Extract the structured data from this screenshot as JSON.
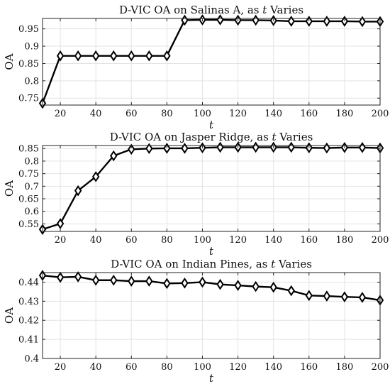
{
  "chart_data": [
    {
      "type": "line",
      "title_prefix": "D-VIC OA on Salinas A, as ",
      "title_var": "t",
      "title_suffix": " Varies",
      "xlabel": "t",
      "ylabel": "OA",
      "xlim": [
        10,
        200
      ],
      "ylim": [
        0.73,
        0.98
      ],
      "xticks": [
        20,
        40,
        60,
        80,
        100,
        120,
        140,
        160,
        180,
        200
      ],
      "yticks": [
        0.75,
        0.8,
        0.85,
        0.9,
        0.95
      ],
      "ytick_labels": [
        "0.75",
        "0.8",
        "0.85",
        "0.9",
        "0.95"
      ],
      "grid": true,
      "x": [
        10,
        20,
        30,
        40,
        50,
        60,
        70,
        80,
        90,
        100,
        110,
        120,
        130,
        140,
        150,
        160,
        170,
        180,
        190,
        200
      ],
      "y": [
        0.735,
        0.872,
        0.872,
        0.872,
        0.872,
        0.872,
        0.872,
        0.872,
        0.975,
        0.976,
        0.976,
        0.975,
        0.975,
        0.974,
        0.972,
        0.972,
        0.972,
        0.972,
        0.971,
        0.971
      ]
    },
    {
      "type": "line",
      "title_prefix": "D-VIC OA on Jasper Ridge, as ",
      "title_var": "t",
      "title_suffix": " Varies",
      "xlabel": "t",
      "ylabel": "OA",
      "xlim": [
        10,
        200
      ],
      "ylim": [
        0.52,
        0.862
      ],
      "xticks": [
        20,
        40,
        60,
        80,
        100,
        120,
        140,
        160,
        180,
        200
      ],
      "yticks": [
        0.55,
        0.6,
        0.65,
        0.7,
        0.75,
        0.8,
        0.85
      ],
      "ytick_labels": [
        "0.55",
        "0.6",
        "0.65",
        "0.7",
        "0.75",
        "0.8",
        "0.85"
      ],
      "grid": true,
      "x": [
        10,
        20,
        30,
        40,
        50,
        60,
        70,
        80,
        90,
        100,
        110,
        120,
        130,
        140,
        150,
        160,
        170,
        180,
        190,
        200
      ],
      "y": [
        0.528,
        0.551,
        0.682,
        0.738,
        0.821,
        0.847,
        0.85,
        0.851,
        0.851,
        0.853,
        0.855,
        0.855,
        0.855,
        0.855,
        0.855,
        0.853,
        0.852,
        0.854,
        0.854,
        0.852
      ]
    },
    {
      "type": "line",
      "title_prefix": "D-VIC OA on Indian Pines, as ",
      "title_var": "t",
      "title_suffix": " Varies",
      "xlabel": "t",
      "ylabel": "OA",
      "xlim": [
        10,
        200
      ],
      "ylim": [
        0.4,
        0.445
      ],
      "xticks": [
        20,
        40,
        60,
        80,
        100,
        120,
        140,
        160,
        180,
        200
      ],
      "yticks": [
        0.4,
        0.41,
        0.42,
        0.43,
        0.44
      ],
      "ytick_labels": [
        "0.4",
        "0.41",
        "0.42",
        "0.43",
        "0.44"
      ],
      "grid": true,
      "x": [
        10,
        20,
        30,
        40,
        50,
        60,
        70,
        80,
        90,
        100,
        110,
        120,
        130,
        140,
        150,
        160,
        170,
        180,
        190,
        200
      ],
      "y": [
        0.4435,
        0.4425,
        0.4428,
        0.441,
        0.441,
        0.4405,
        0.4405,
        0.4393,
        0.4395,
        0.44,
        0.4388,
        0.4383,
        0.4377,
        0.4373,
        0.4355,
        0.433,
        0.4327,
        0.4323,
        0.432,
        0.4305
      ]
    }
  ]
}
